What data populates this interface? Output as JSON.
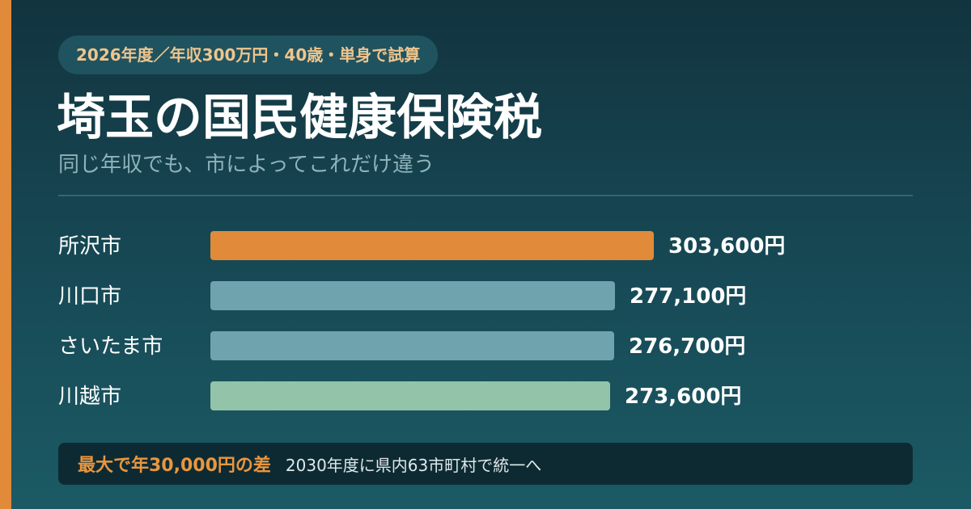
{
  "header": {
    "badge": "2026年度／年収300万円・40歳・単身で試算",
    "title": "埼玉の国民健康保険税",
    "subtitle": "同じ年収でも、市によってこれだけ違う"
  },
  "chart_data": {
    "type": "bar",
    "orientation": "horizontal",
    "categories": [
      "所沢市",
      "川口市",
      "さいたま市",
      "川越市"
    ],
    "values": [
      303600,
      277100,
      276700,
      273600
    ],
    "value_labels": [
      "303,600円",
      "277,100円",
      "276,700円",
      "273,600円"
    ],
    "colors": [
      "#e08a3a",
      "#6fa3ad",
      "#6fa3ad",
      "#93c3a8"
    ],
    "title": "",
    "xlabel": "",
    "ylabel": "",
    "xlim": [
      0,
      303600
    ],
    "grid": false,
    "legend": "none"
  },
  "footer": {
    "highlight": "最大で年30,000円の差",
    "note": "2030年度に県内63市町村で統一へ"
  }
}
